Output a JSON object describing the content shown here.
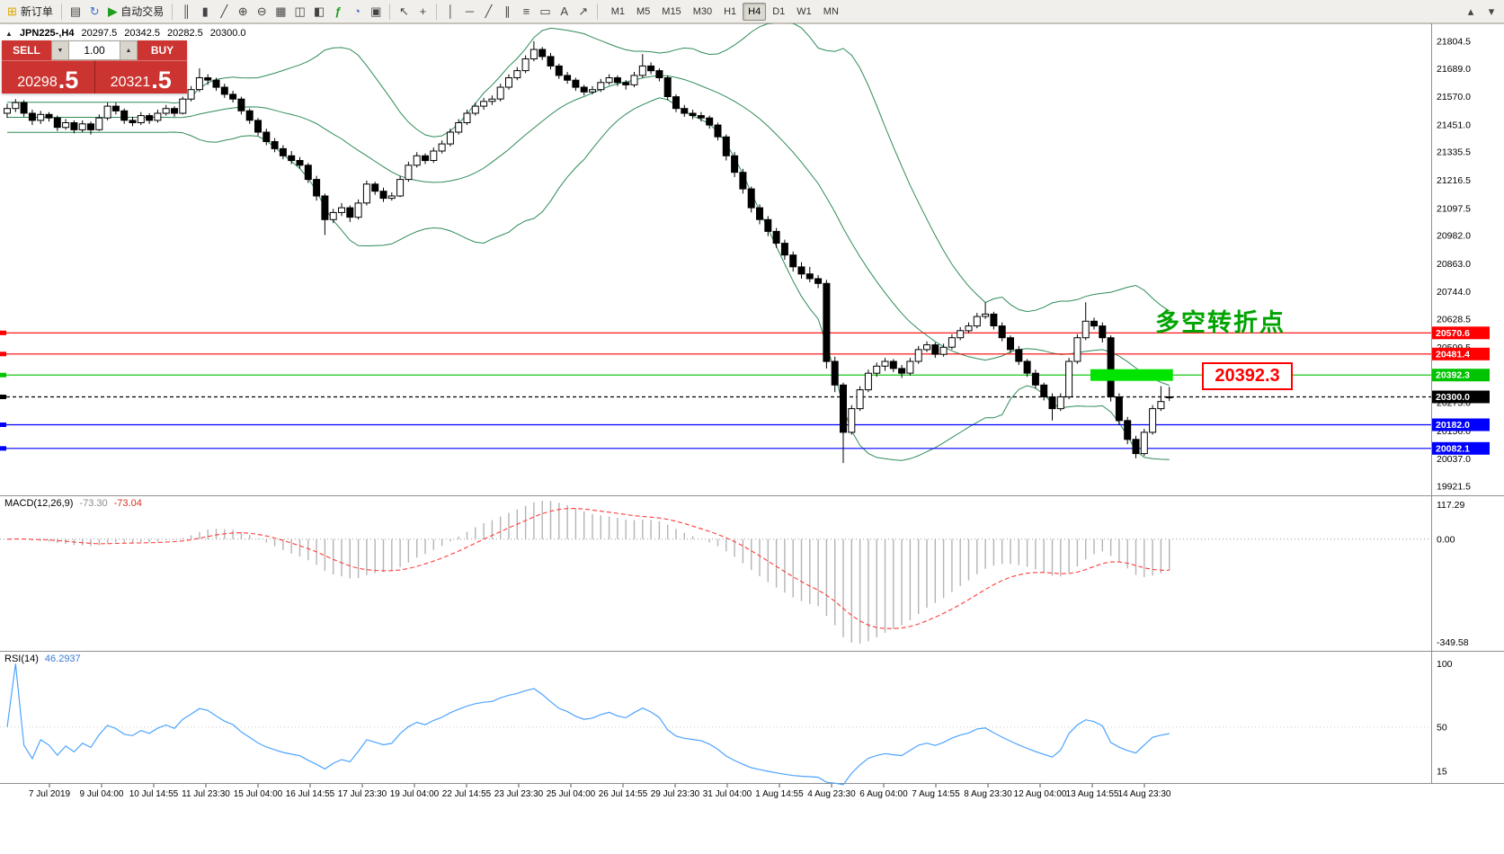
{
  "toolbar": {
    "new_order_label": "新订单",
    "autotrading_label": "自动交易",
    "timeframes": [
      "M1",
      "M5",
      "M15",
      "M30",
      "H1",
      "H4",
      "D1",
      "W1",
      "MN"
    ],
    "active_timeframe": "H4"
  },
  "icons": {
    "new-order-icon": "⊞",
    "profiles-icon": "▤",
    "refresh-icon": "↻",
    "autotrading-icon": "▶",
    "bar-chart-icon": "║",
    "candlestick-icon": "▮",
    "line-chart-icon": "╱",
    "zoom-in-icon": "⊕",
    "zoom-out-icon": "⊖",
    "grid-icon": "▦",
    "tile-horizontal-icon": "◫",
    "tile-vertical-icon": "◧",
    "indicators-icon": "ƒ",
    "periods-icon": "◔",
    "templates-icon": "▣",
    "cursor-icon": "↖",
    "crosshair-icon": "+",
    "vertical-line-icon": "│",
    "horizontal-line-icon": "─",
    "trendline-icon": "╱",
    "channel-icon": "∥",
    "fibonacci-icon": "≡",
    "shapes-icon": "▭",
    "text-icon": "A",
    "arrows-icon": "↗",
    "scroll-up-icon": "▴",
    "scroll-down-icon": "▾",
    "one-click-toggle-icon": "▲",
    "spin-up-icon": "▲",
    "spin-down-icon": "▼"
  },
  "chart_info": {
    "symbol_period": "JPN225-,H4",
    "open": "20297.5",
    "high": "20342.5",
    "low": "20282.5",
    "close": "20300.0"
  },
  "one_click": {
    "sell_label": "SELL",
    "buy_label": "BUY",
    "volume": "1.00",
    "sell_price_main": "20298",
    "sell_price_big": ".5",
    "buy_price_main": "20321",
    "buy_price_big": ".5"
  },
  "indicators": {
    "macd_label": "MACD(12,26,9)",
    "macd_value1": "-73.30",
    "macd_value2": "-73.04",
    "rsi_label": "RSI(14)",
    "rsi_value": "46.2937"
  },
  "annotations": {
    "turning_point_text": "多空转折点",
    "price_box": "20392.3"
  },
  "levels": [
    {
      "price": 20570.6,
      "label": "20570.6",
      "color": "#ff0000",
      "style": "solid"
    },
    {
      "price": 20481.4,
      "label": "20481.4",
      "color": "#ff0000",
      "style": "solid"
    },
    {
      "price": 20392.3,
      "label": "20392.3",
      "color": "#00c400",
      "style": "solid"
    },
    {
      "price": 20300.0,
      "label": "20300.0",
      "color": "#000000",
      "style": "current"
    },
    {
      "price": 20182.0,
      "label": "20182.0",
      "color": "#0000ff",
      "style": "solid"
    },
    {
      "price": 20082.1,
      "label": "20082.1",
      "color": "#0000ff",
      "style": "solid"
    }
  ],
  "highlight_bar": {
    "price": 20392.3,
    "from_index": 130,
    "to_index": 139,
    "color": "#00e400"
  },
  "colors": {
    "bollinger": "#2e8b57",
    "bull": "#ffffff",
    "bear": "#000000",
    "macd_hist": "#b4b4b4",
    "macd_signal": "#ff3b3b",
    "rsi": "#4da3ff",
    "panel_border": "#8f8f8f",
    "axis_text": "#000000"
  },
  "axes": {
    "price_labels": [
      "21804.5",
      "21689.0",
      "21570.0",
      "21451.0",
      "21335.5",
      "21216.5",
      "21097.5",
      "20982.0",
      "20863.0",
      "20744.0",
      "20628.5",
      "20509.5",
      "20275.0",
      "20156.0",
      "20037.0",
      "19921.5"
    ],
    "time_labels": [
      "7 Jul 2019",
      "9 Jul 04:00",
      "10 Jul 14:55",
      "11 Jul 23:30",
      "15 Jul 04:00",
      "16 Jul 14:55",
      "17 Jul 23:30",
      "19 Jul 04:00",
      "22 Jul 14:55",
      "23 Jul 23:30",
      "25 Jul 04:00",
      "26 Jul 14:55",
      "29 Jul 23:30",
      "31 Jul 04:00",
      "1 Aug 14:55",
      "4 Aug 23:30",
      "6 Aug 04:00",
      "7 Aug 14:55",
      "8 Aug 23:30",
      "12 Aug 04:00",
      "13 Aug 14:55",
      "14 Aug 23:30"
    ],
    "macd_scale": [
      "117.29",
      "0.00",
      "-349.58"
    ],
    "rsi_scale": [
      "100",
      "50",
      "15"
    ]
  },
  "chart_data": {
    "type": "candlestick",
    "symbol": "JPN225-",
    "period": "H4",
    "price_axis": {
      "min": 19891,
      "max": 21865
    },
    "bollinger": {
      "period": 20,
      "deviation": 2
    },
    "macd": {
      "fast": 12,
      "slow": 26,
      "signal": 9
    },
    "rsi": {
      "period": 14
    },
    "candles": [
      [
        21500,
        21540,
        21480,
        21520
      ],
      [
        21520,
        21560,
        21505,
        21545
      ],
      [
        21545,
        21555,
        21485,
        21500
      ],
      [
        21500,
        21515,
        21450,
        21470
      ],
      [
        21470,
        21510,
        21455,
        21495
      ],
      [
        21495,
        21505,
        21465,
        21480
      ],
      [
        21480,
        21490,
        21425,
        21440
      ],
      [
        21440,
        21475,
        21430,
        21460
      ],
      [
        21460,
        21470,
        21415,
        21430
      ],
      [
        21430,
        21470,
        21420,
        21455
      ],
      [
        21455,
        21465,
        21410,
        21430
      ],
      [
        21430,
        21495,
        21425,
        21480
      ],
      [
        21480,
        21545,
        21470,
        21530
      ],
      [
        21530,
        21545,
        21495,
        21510
      ],
      [
        21510,
        21520,
        21455,
        21470
      ],
      [
        21470,
        21485,
        21445,
        21460
      ],
      [
        21460,
        21505,
        21450,
        21490
      ],
      [
        21490,
        21500,
        21455,
        21470
      ],
      [
        21470,
        21515,
        21460,
        21500
      ],
      [
        21500,
        21535,
        21490,
        21520
      ],
      [
        21520,
        21530,
        21485,
        21500
      ],
      [
        21500,
        21570,
        21495,
        21560
      ],
      [
        21560,
        21615,
        21550,
        21600
      ],
      [
        21600,
        21690,
        21590,
        21650
      ],
      [
        21650,
        21665,
        21620,
        21640
      ],
      [
        21640,
        21650,
        21595,
        21610
      ],
      [
        21610,
        21625,
        21565,
        21580
      ],
      [
        21580,
        21595,
        21545,
        21560
      ],
      [
        21560,
        21570,
        21495,
        21510
      ],
      [
        21510,
        21520,
        21455,
        21470
      ],
      [
        21470,
        21480,
        21405,
        21420
      ],
      [
        21420,
        21435,
        21365,
        21380
      ],
      [
        21380,
        21395,
        21335,
        21350
      ],
      [
        21350,
        21365,
        21305,
        21320
      ],
      [
        21320,
        21340,
        21285,
        21300
      ],
      [
        21300,
        21315,
        21265,
        21280
      ],
      [
        21280,
        21290,
        21205,
        21220
      ],
      [
        21220,
        21235,
        21130,
        21150
      ],
      [
        21150,
        21160,
        20985,
        21050
      ],
      [
        21050,
        21095,
        21035,
        21080
      ],
      [
        21080,
        21120,
        21065,
        21100
      ],
      [
        21100,
        21110,
        21040,
        21060
      ],
      [
        21060,
        21135,
        21050,
        21120
      ],
      [
        21120,
        21215,
        21110,
        21200
      ],
      [
        21200,
        21210,
        21155,
        21170
      ],
      [
        21170,
        21185,
        21125,
        21140
      ],
      [
        21140,
        21165,
        21130,
        21150
      ],
      [
        21150,
        21235,
        21145,
        21220
      ],
      [
        21220,
        21295,
        21210,
        21280
      ],
      [
        21280,
        21335,
        21270,
        21320
      ],
      [
        21320,
        21330,
        21285,
        21300
      ],
      [
        21300,
        21355,
        21290,
        21340
      ],
      [
        21340,
        21385,
        21330,
        21370
      ],
      [
        21370,
        21435,
        21360,
        21420
      ],
      [
        21420,
        21475,
        21410,
        21460
      ],
      [
        21460,
        21515,
        21450,
        21500
      ],
      [
        21500,
        21545,
        21490,
        21530
      ],
      [
        21530,
        21565,
        21515,
        21550
      ],
      [
        21550,
        21575,
        21535,
        21560
      ],
      [
        21560,
        21625,
        21550,
        21610
      ],
      [
        21610,
        21665,
        21600,
        21650
      ],
      [
        21650,
        21695,
        21640,
        21680
      ],
      [
        21680,
        21745,
        21670,
        21730
      ],
      [
        21730,
        21805,
        21720,
        21770
      ],
      [
        21770,
        21780,
        21725,
        21740
      ],
      [
        21740,
        21755,
        21685,
        21700
      ],
      [
        21700,
        21710,
        21645,
        21660
      ],
      [
        21660,
        21675,
        21625,
        21640
      ],
      [
        21640,
        21650,
        21595,
        21610
      ],
      [
        21610,
        21620,
        21575,
        21590
      ],
      [
        21590,
        21615,
        21580,
        21600
      ],
      [
        21600,
        21645,
        21590,
        21630
      ],
      [
        21630,
        21665,
        21620,
        21650
      ],
      [
        21650,
        21660,
        21615,
        21630
      ],
      [
        21630,
        21640,
        21600,
        21620
      ],
      [
        21620,
        21675,
        21610,
        21660
      ],
      [
        21660,
        21750,
        21650,
        21700
      ],
      [
        21700,
        21715,
        21665,
        21680
      ],
      [
        21680,
        21690,
        21635,
        21650
      ],
      [
        21650,
        21660,
        21555,
        21570
      ],
      [
        21570,
        21580,
        21505,
        21520
      ],
      [
        21520,
        21535,
        21485,
        21500
      ],
      [
        21500,
        21515,
        21475,
        21490
      ],
      [
        21490,
        21505,
        21465,
        21480
      ],
      [
        21480,
        21490,
        21435,
        21450
      ],
      [
        21450,
        21460,
        21385,
        21400
      ],
      [
        21400,
        21410,
        21300,
        21320
      ],
      [
        21320,
        21335,
        21230,
        21250
      ],
      [
        21250,
        21265,
        21160,
        21180
      ],
      [
        21180,
        21190,
        21080,
        21100
      ],
      [
        21100,
        21115,
        21030,
        21050
      ],
      [
        21050,
        21065,
        20980,
        21000
      ],
      [
        21000,
        21015,
        20930,
        20950
      ],
      [
        20950,
        20965,
        20880,
        20900
      ],
      [
        20900,
        20915,
        20830,
        20850
      ],
      [
        20850,
        20870,
        20800,
        20820
      ],
      [
        20820,
        20850,
        20785,
        20800
      ],
      [
        20800,
        20815,
        20760,
        20780
      ],
      [
        20780,
        20795,
        20420,
        20450
      ],
      [
        20450,
        20470,
        20320,
        20350
      ],
      [
        20350,
        20360,
        20020,
        20150
      ],
      [
        20150,
        20265,
        20140,
        20250
      ],
      [
        20250,
        20345,
        20240,
        20330
      ],
      [
        20330,
        20415,
        20320,
        20400
      ],
      [
        20400,
        20445,
        20385,
        20430
      ],
      [
        20430,
        20465,
        20410,
        20450
      ],
      [
        20450,
        20460,
        20405,
        20420
      ],
      [
        20420,
        20435,
        20380,
        20400
      ],
      [
        20400,
        20465,
        20390,
        20450
      ],
      [
        20450,
        20515,
        20440,
        20500
      ],
      [
        20500,
        20535,
        20490,
        20520
      ],
      [
        20520,
        20530,
        20465,
        20480
      ],
      [
        20480,
        20525,
        20470,
        20510
      ],
      [
        20510,
        20565,
        20500,
        20550
      ],
      [
        20550,
        20595,
        20540,
        20580
      ],
      [
        20580,
        20615,
        20570,
        20600
      ],
      [
        20600,
        20655,
        20590,
        20640
      ],
      [
        20640,
        20700,
        20630,
        20650
      ],
      [
        20650,
        20660,
        20585,
        20600
      ],
      [
        20600,
        20615,
        20535,
        20550
      ],
      [
        20550,
        20560,
        20485,
        20500
      ],
      [
        20500,
        20515,
        20435,
        20450
      ],
      [
        20450,
        20460,
        20385,
        20400
      ],
      [
        20400,
        20415,
        20335,
        20350
      ],
      [
        20350,
        20360,
        20285,
        20300
      ],
      [
        20300,
        20315,
        20200,
        20250
      ],
      [
        20250,
        20315,
        20240,
        20300
      ],
      [
        20300,
        20465,
        20290,
        20450
      ],
      [
        20450,
        20565,
        20440,
        20550
      ],
      [
        20550,
        20700,
        20540,
        20620
      ],
      [
        20620,
        20635,
        20585,
        20600
      ],
      [
        20600,
        20615,
        20530,
        20550
      ],
      [
        20550,
        20560,
        20280,
        20300
      ],
      [
        20300,
        20315,
        20180,
        20200
      ],
      [
        20200,
        20215,
        20100,
        20120
      ],
      [
        20120,
        20135,
        20040,
        20060
      ],
      [
        20060,
        20165,
        20050,
        20150
      ],
      [
        20150,
        20265,
        20140,
        20250
      ],
      [
        20250,
        20345,
        20240,
        20280
      ],
      [
        20297.5,
        20342.5,
        20282.5,
        20300.0
      ]
    ]
  }
}
